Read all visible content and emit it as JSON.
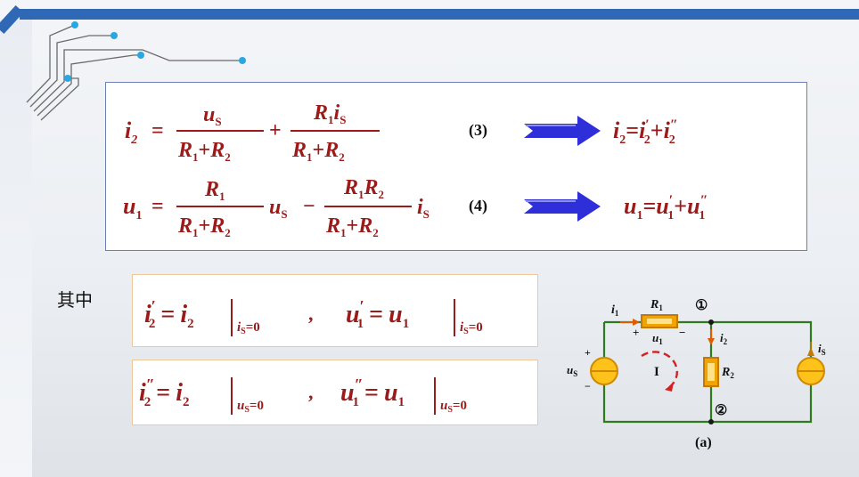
{
  "equations": {
    "eq3": {
      "lhs": "i",
      "lhs_sub": "2",
      "frac1_num": "u",
      "frac1_num_sub": "S",
      "frac1_den": "R",
      "frac1_den_sub_a": "1",
      "frac1_den_b": "R",
      "frac1_den_sub_b": "2",
      "frac2_num_a": "R",
      "frac2_num_sub": "1",
      "frac2_num_b": "i",
      "frac2_num_sub_b": "S",
      "number": "(3)",
      "result_lhs": "i",
      "result_lhs_sub": "2",
      "result_t1": "i",
      "result_t1_sub": "2",
      "result_t1_prime": "′",
      "result_t2": "i",
      "result_t2_sub": "2",
      "result_t2_prime": "″"
    },
    "eq4": {
      "lhs": "u",
      "lhs_sub": "1",
      "frac1_num": "R",
      "frac1_num_sub": "1",
      "factor1": "u",
      "factor1_sub": "S",
      "frac2_num_a": "R",
      "frac2_num_sub_a": "1",
      "frac2_num_b": "R",
      "frac2_num_sub_b": "2",
      "factor2": "i",
      "factor2_sub": "S",
      "number": "(4)",
      "result_lhs": "u",
      "result_lhs_sub": "1",
      "result_t1": "u",
      "result_t1_sub": "1",
      "result_t1_prime": "′",
      "result_t2": "u",
      "result_t2_sub": "1",
      "result_t2_prime": "″"
    },
    "plus": "+",
    "minus": "−",
    "equals": "="
  },
  "label_qizhong": "其中",
  "defs": {
    "row1_left": {
      "var": "i",
      "sub": "2",
      "prime": "′",
      "rhs": "i",
      "rhs_sub": "2",
      "cond": "i",
      "cond_sub": "S",
      "cond_val": "=0"
    },
    "row1_right": {
      "var": "u",
      "sub": "1",
      "prime": "′",
      "rhs": "u",
      "rhs_sub": "1",
      "cond": "i",
      "cond_sub": "S",
      "cond_val": "=0"
    },
    "row2_left": {
      "var": "i",
      "sub": "2",
      "prime": "″",
      "rhs": "i",
      "rhs_sub": "2",
      "cond": "u",
      "cond_sub": "S",
      "cond_val": "=0"
    },
    "row2_right": {
      "var": "u",
      "sub": "1",
      "prime": "″",
      "rhs": "u",
      "rhs_sub": "1",
      "cond": "u",
      "cond_sub": "S",
      "cond_val": "=0"
    },
    "separator": ","
  },
  "circuit": {
    "i1": "i",
    "i1_sub": "1",
    "R1": "R",
    "R1_sub": "1",
    "node1": "①",
    "node2": "②",
    "i2": "i",
    "i2_sub": "2",
    "R2": "R",
    "R2_sub": "2",
    "u1": "u",
    "u1_sub": "1",
    "plus": "+",
    "minus": "−",
    "us": "u",
    "us_sub": "S",
    "is": "i",
    "is_sub": "S",
    "loop": "I",
    "caption": "(a)"
  },
  "colors": {
    "header": "#2f68b4",
    "math": "#9b1b1b",
    "arrow": "#2e2fd8",
    "wire": "#2f7a1f",
    "component": "#f0a400",
    "eq_border": "#6f80b7",
    "def_border": "#f0c79a"
  }
}
